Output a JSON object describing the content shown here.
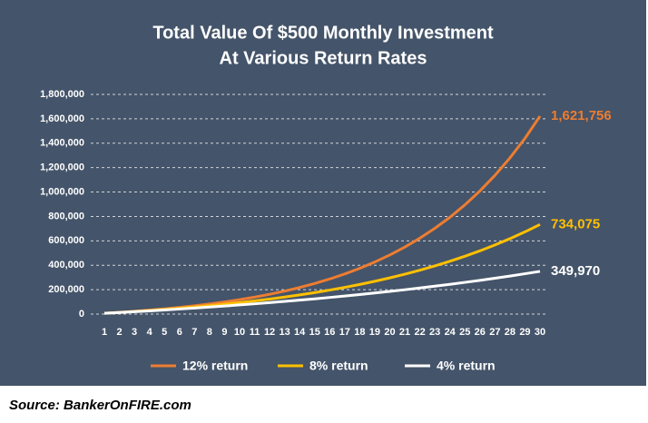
{
  "chart_data": {
    "type": "line",
    "title": [
      "Total Value Of $500 Monthly Investment",
      "At Various Return Rates"
    ],
    "categories": [
      1,
      2,
      3,
      4,
      5,
      6,
      7,
      8,
      9,
      10,
      11,
      12,
      13,
      14,
      15,
      16,
      17,
      18,
      19,
      20,
      21,
      22,
      23,
      24,
      25,
      26,
      27,
      28,
      29,
      30
    ],
    "series": [
      {
        "name": "12% return",
        "color": "#ed7d31",
        "values": [
          6720,
          14246,
          22676,
          32117,
          42691,
          54534,
          67798,
          82654,
          99292,
          117927,
          138798,
          162174,
          188355,
          217678,
          250519,
          287301,
          328497,
          374637,
          426313,
          484191,
          549014,
          621616,
          702930,
          793002,
          894882,
          1008988,
          1136787,
          1279921,
          1440232,
          1621756
        ],
        "value_labels": [
          null,
          null,
          null,
          null,
          null,
          null,
          null,
          null,
          null,
          null,
          null,
          null,
          null,
          null,
          null,
          null,
          null,
          null,
          null,
          null,
          null,
          null,
          null,
          null,
          null,
          null,
          null,
          null,
          null,
          "1,621,756"
        ]
      },
      {
        "name": "8% return",
        "color": "#ffc000",
        "values": [
          6480,
          13478,
          21037,
          29200,
          38016,
          47537,
          57820,
          68926,
          80920,
          93874,
          107864,
          122973,
          139291,
          156914,
          175947,
          196503,
          218703,
          242679,
          268573,
          296539,
          326742,
          359361,
          394590,
          432637,
          473728,
          518106,
          566034,
          617797,
          673701,
          734075
        ],
        "value_labels": [
          null,
          null,
          null,
          null,
          null,
          null,
          null,
          null,
          null,
          null,
          null,
          null,
          null,
          null,
          null,
          null,
          null,
          null,
          null,
          null,
          null,
          null,
          null,
          null,
          null,
          null,
          null,
          null,
          null,
          "734,075"
        ]
      },
      {
        "name": "4% return",
        "color": "#ffffff",
        "values": [
          6240,
          12730,
          19479,
          26498,
          33798,
          41390,
          49286,
          57497,
          66037,
          74918,
          84155,
          93761,
          103751,
          114141,
          124947,
          136185,
          147872,
          160027,
          172668,
          185815,
          199488,
          213708,
          228496,
          243876,
          259871,
          276506,
          293806,
          311798,
          330510,
          349970
        ],
        "value_labels": [
          null,
          null,
          null,
          null,
          null,
          null,
          null,
          null,
          null,
          null,
          null,
          null,
          null,
          null,
          null,
          null,
          null,
          null,
          null,
          null,
          null,
          null,
          null,
          null,
          null,
          null,
          null,
          null,
          null,
          "349,970"
        ]
      }
    ],
    "ylim": [
      0,
      1800000
    ],
    "yticks": [
      0,
      {
        "value": 200000,
        "label": "200,000"
      },
      {
        "value": 400000,
        "label": "400,000"
      },
      {
        "value": 600000,
        "label": "600,000"
      },
      {
        "value": 800000,
        "label": "800,000"
      },
      {
        "value": 1000000,
        "label": "1,000,000"
      },
      {
        "value": 1200000,
        "label": "1,200,000"
      },
      {
        "value": 1400000,
        "label": "1,400,000"
      },
      {
        "value": 1600000,
        "label": "1,600,000"
      },
      {
        "value": 1800000,
        "label": "1,800,000"
      }
    ],
    "grid": true,
    "legend": "bottom"
  },
  "source": "Source: BankerOnFIRE.com"
}
